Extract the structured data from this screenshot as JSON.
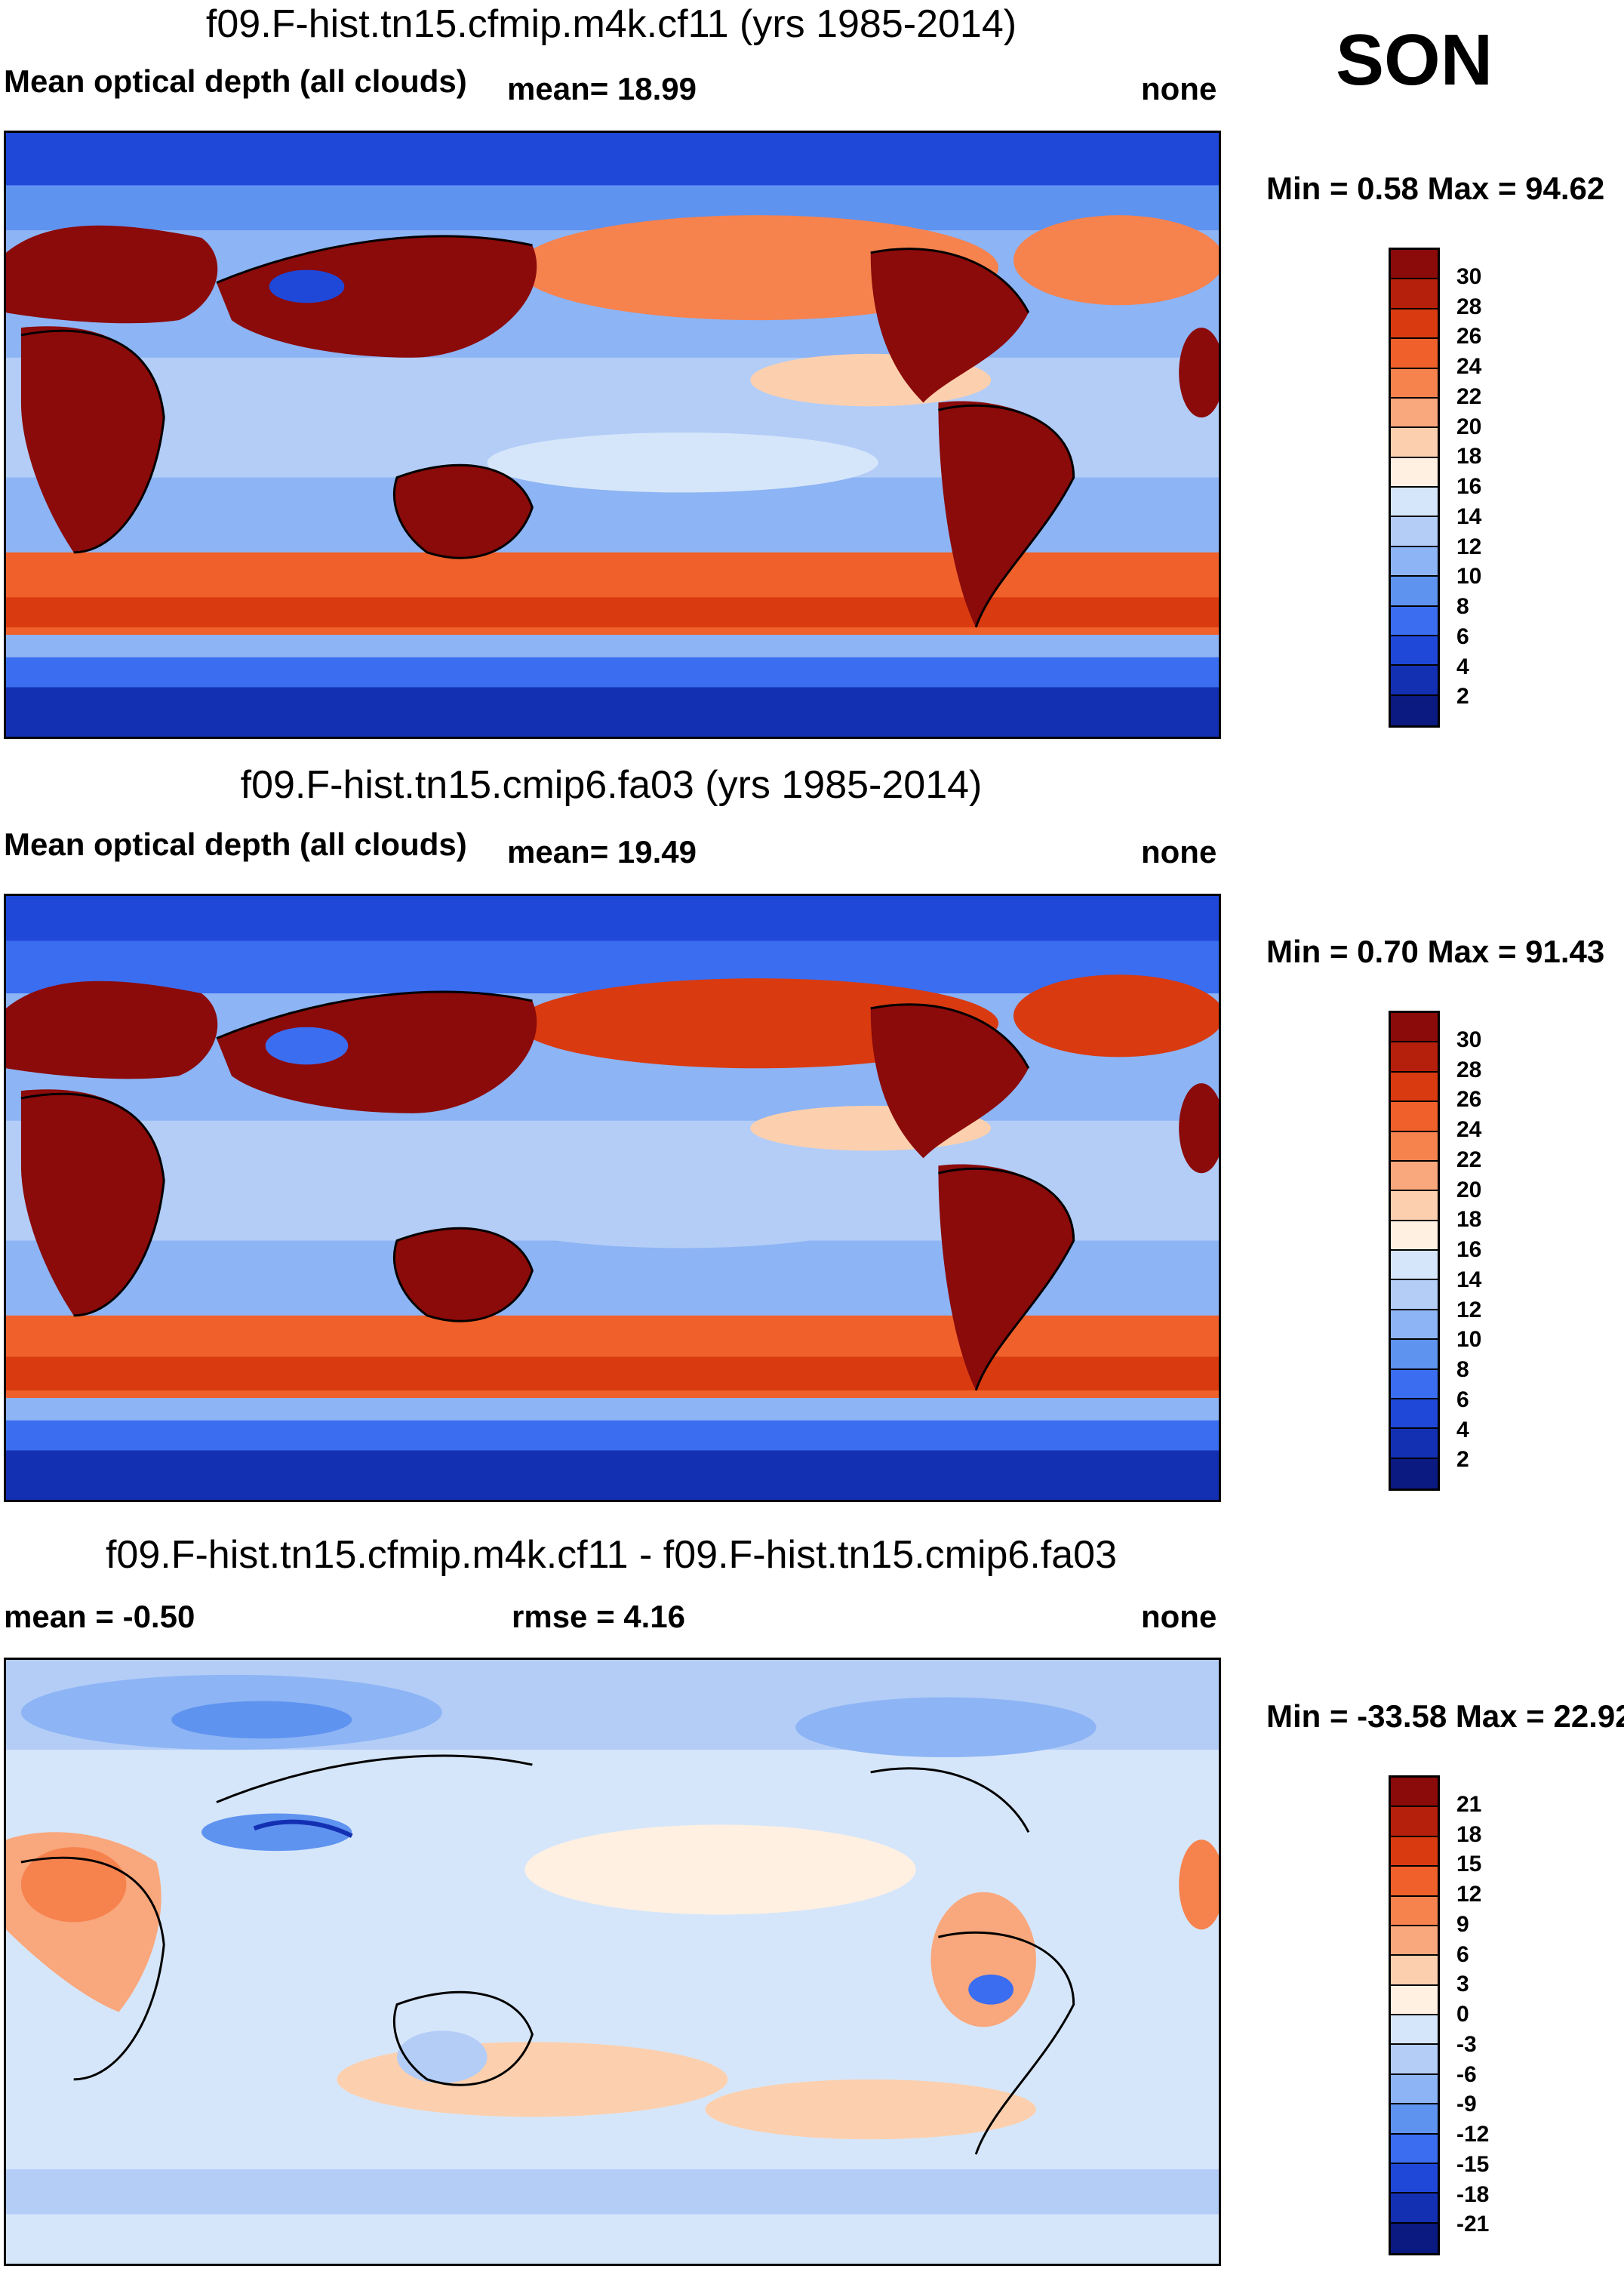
{
  "season": "SON",
  "panels": [
    {
      "title": "f09.F-hist.tn15.cfmip.m4k.cf11 (yrs 1985-2014)",
      "left_label": "Mean optical depth (all clouds)",
      "mid_label": "mean=  18.99",
      "right_label": "none",
      "minmax": "Min =   0.58 Max =  94.62",
      "colorbar": {
        "ticks": [
          "30",
          "28",
          "26",
          "24",
          "22",
          "20",
          "18",
          "16",
          "14",
          "12",
          "10",
          "8",
          "6",
          "4",
          "2"
        ],
        "colors": [
          "#8b0a0a",
          "#b5200c",
          "#d93a10",
          "#f0602a",
          "#f6824e",
          "#f9a77c",
          "#fcd0ae",
          "#fff0e2",
          "#d6e6fa",
          "#b3cdf7",
          "#8db4f4",
          "#5f93f0",
          "#3b6df0",
          "#1f48d9",
          "#1330b3",
          "#0a1a80"
        ]
      }
    },
    {
      "title": "f09.F-hist.tn15.cmip6.fa03 (yrs 1985-2014)",
      "left_label": "Mean optical depth (all clouds)",
      "mid_label": "mean=  19.49",
      "right_label": "none",
      "minmax": "Min =   0.70 Max =  91.43",
      "colorbar": {
        "ticks": [
          "30",
          "28",
          "26",
          "24",
          "22",
          "20",
          "18",
          "16",
          "14",
          "12",
          "10",
          "8",
          "6",
          "4",
          "2"
        ],
        "colors": [
          "#8b0a0a",
          "#b5200c",
          "#d93a10",
          "#f0602a",
          "#f6824e",
          "#f9a77c",
          "#fcd0ae",
          "#fff0e2",
          "#d6e6fa",
          "#b3cdf7",
          "#8db4f4",
          "#5f93f0",
          "#3b6df0",
          "#1f48d9",
          "#1330b3",
          "#0a1a80"
        ]
      }
    },
    {
      "title": "f09.F-hist.tn15.cfmip.m4k.cf11 - f09.F-hist.tn15.cmip6.fa03",
      "left_label": "mean =  -0.50",
      "mid_label": "rmse =    4.16",
      "right_label": "none",
      "minmax": "Min = -33.58 Max =  22.92",
      "colorbar": {
        "ticks": [
          "21",
          "18",
          "15",
          "12",
          "9",
          "6",
          "3",
          "0",
          "-3",
          "-6",
          "-9",
          "-12",
          "-15",
          "-18",
          "-21"
        ],
        "colors": [
          "#8b0a0a",
          "#b5200c",
          "#d93a10",
          "#f0602a",
          "#f6824e",
          "#f9a77c",
          "#fcd0ae",
          "#fff0e2",
          "#d6e6fa",
          "#b3cdf7",
          "#8db4f4",
          "#5f93f0",
          "#3b6df0",
          "#1f48d9",
          "#1330b3",
          "#0a1a80"
        ]
      }
    }
  ],
  "map_colors": {
    "deep_red": "#8b0a0a",
    "red": "#d93a10",
    "orange": "#f6824e",
    "peach": "#fcd0ae",
    "cream": "#fff0e2",
    "light_blue": "#d6e6fa",
    "mid_blue": "#8db4f4",
    "blue": "#3b6df0",
    "deep_blue": "#0a1a80"
  }
}
